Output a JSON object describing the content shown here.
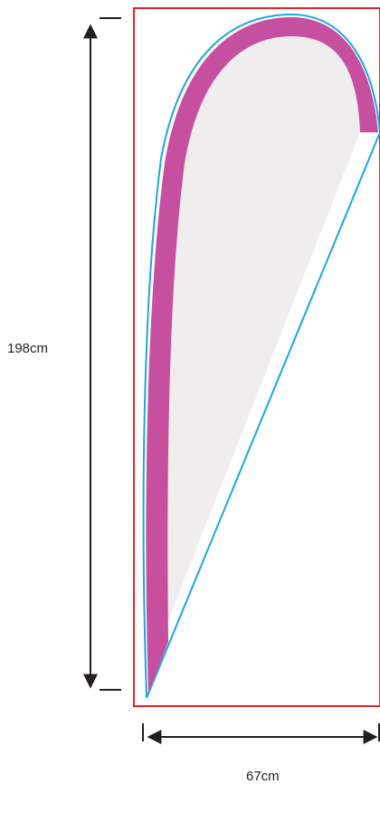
{
  "dimensions": {
    "height_label": "198cm",
    "width_label": "67cm"
  },
  "colors": {
    "frame": "#e2242b",
    "pole": "#c64fa0",
    "outline": "#1ba8e0",
    "fabric": "#efeded",
    "dimension_line": "#231f20"
  }
}
